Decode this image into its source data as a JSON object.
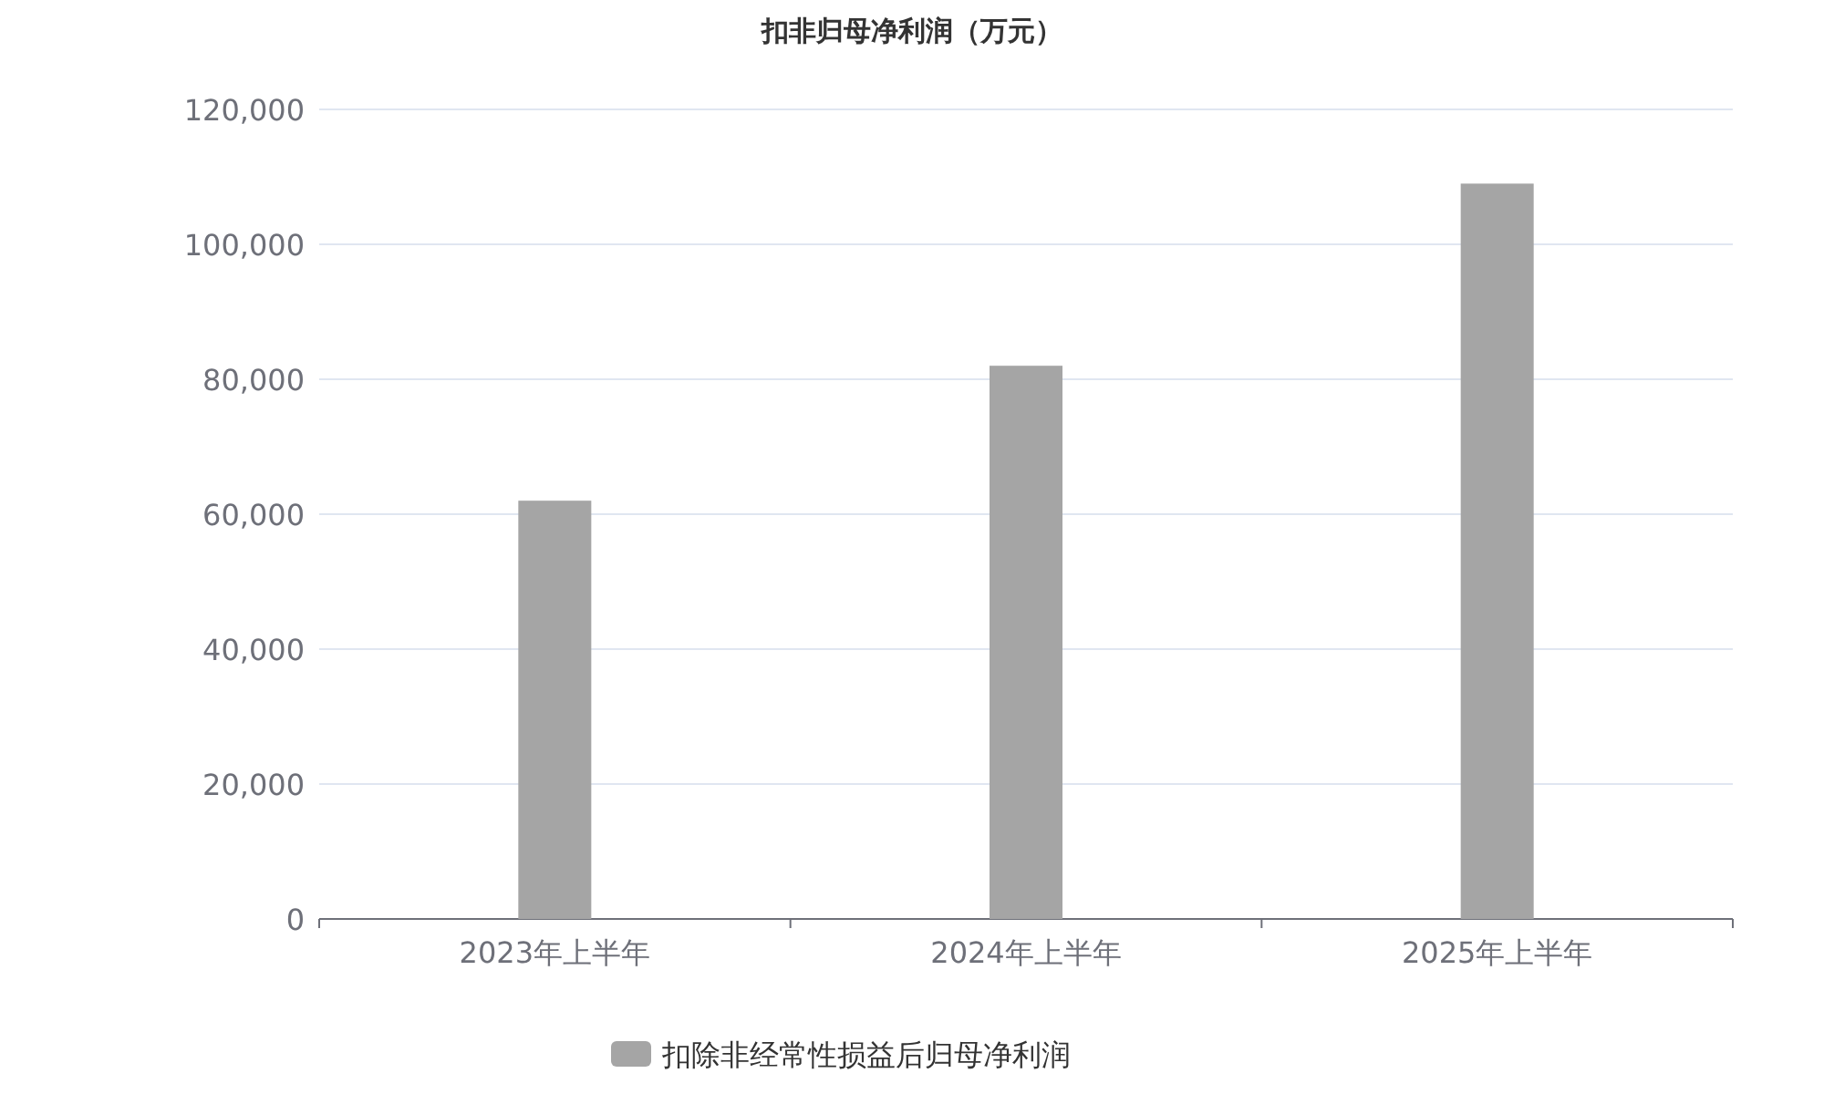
{
  "chart_data": {
    "type": "bar",
    "title": "扣非归母净利润（万元）",
    "categories": [
      "2023年上半年",
      "2024年上半年",
      "2025年上半年"
    ],
    "series": [
      {
        "name": "扣除非经常性损益后归母净利润",
        "color": "#a5a5a5",
        "values": [
          62000,
          82000,
          109000
        ]
      }
    ],
    "ylim": [
      0,
      120000
    ],
    "yticks": [
      0,
      {
        "value": 20000,
        "label": "20,000"
      },
      {
        "value": 40000,
        "label": "40,000"
      },
      {
        "value": 60000,
        "label": "60,000"
      },
      {
        "value": 80000,
        "label": "80,000"
      },
      {
        "value": 100000,
        "label": "100,000"
      },
      {
        "value": 120000,
        "label": "120,000"
      }
    ],
    "grid": "y",
    "legend": "bottom"
  }
}
